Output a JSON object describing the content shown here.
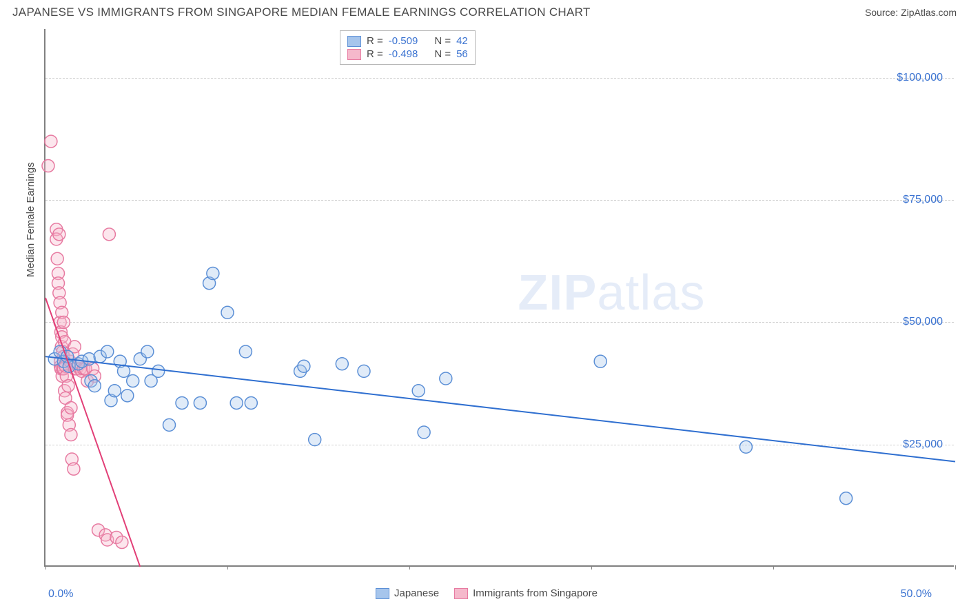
{
  "header": {
    "title": "JAPANESE VS IMMIGRANTS FROM SINGAPORE MEDIAN FEMALE EARNINGS CORRELATION CHART",
    "source_prefix": "Source: ",
    "source": "ZipAtlas.com"
  },
  "chart": {
    "type": "scatter",
    "y_axis_label": "Median Female Earnings",
    "x_axis": {
      "min": 0,
      "max": 50,
      "label_min": "0.0%",
      "label_max": "50.0%",
      "tick_positions_pct": [
        0,
        10,
        20,
        30,
        40,
        50
      ]
    },
    "y_axis": {
      "min": 0,
      "max": 110000,
      "gridlines": [
        25000,
        50000,
        75000,
        100000
      ],
      "labels": [
        "$25,000",
        "$50,000",
        "$75,000",
        "$100,000"
      ]
    },
    "background_color": "#ffffff",
    "grid_color": "#d0d0d0",
    "axis_color": "#808080",
    "label_color": "#3b73d1",
    "title_color": "#4a4a4a",
    "marker_radius": 9,
    "marker_stroke_width": 1.5,
    "marker_fill_opacity": 0.35,
    "regression_line_width": 2,
    "watermark_text_bold": "ZIP",
    "watermark_text_light": "atlas",
    "watermark_color": "#e5ecf8",
    "series": [
      {
        "name": "Japanese",
        "legend_label": "Japanese",
        "color_fill": "#a6c5ec",
        "color_stroke": "#5b8fd6",
        "line_color": "#2f6fd0",
        "r_value": "-0.509",
        "n_value": "42",
        "regression": {
          "x1": 0,
          "y1": 43000,
          "x2": 50,
          "y2": 21500
        },
        "points": [
          [
            0.5,
            42500
          ],
          [
            0.8,
            44000
          ],
          [
            1.0,
            42000
          ],
          [
            1.2,
            43000
          ],
          [
            1.3,
            41000
          ],
          [
            1.8,
            41500
          ],
          [
            2.0,
            42000
          ],
          [
            2.4,
            42500
          ],
          [
            2.5,
            38000
          ],
          [
            2.7,
            37000
          ],
          [
            3.0,
            43000
          ],
          [
            3.4,
            44000
          ],
          [
            3.6,
            34000
          ],
          [
            3.8,
            36000
          ],
          [
            4.1,
            42000
          ],
          [
            4.3,
            40000
          ],
          [
            4.5,
            35000
          ],
          [
            4.8,
            38000
          ],
          [
            5.2,
            42500
          ],
          [
            5.6,
            44000
          ],
          [
            5.8,
            38000
          ],
          [
            6.2,
            40000
          ],
          [
            6.8,
            29000
          ],
          [
            7.5,
            33500
          ],
          [
            8.5,
            33500
          ],
          [
            9.0,
            58000
          ],
          [
            9.2,
            60000
          ],
          [
            10.0,
            52000
          ],
          [
            10.5,
            33500
          ],
          [
            11.0,
            44000
          ],
          [
            11.3,
            33500
          ],
          [
            14.0,
            40000
          ],
          [
            14.2,
            41000
          ],
          [
            14.8,
            26000
          ],
          [
            16.3,
            41500
          ],
          [
            17.5,
            40000
          ],
          [
            20.5,
            36000
          ],
          [
            20.8,
            27500
          ],
          [
            22.0,
            38500
          ],
          [
            30.5,
            42000
          ],
          [
            38.5,
            24500
          ],
          [
            44.0,
            14000
          ]
        ]
      },
      {
        "name": "Immigrants from Singapore",
        "legend_label": "Immigrants from Singapore",
        "color_fill": "#f5b8cb",
        "color_stroke": "#e77aa1",
        "line_color": "#e23f77",
        "r_value": "-0.498",
        "n_value": "56",
        "regression": {
          "x1": 0,
          "y1": 55000,
          "x2": 5.2,
          "y2": 0
        },
        "points": [
          [
            0.15,
            82000
          ],
          [
            0.3,
            87000
          ],
          [
            0.6,
            69000
          ],
          [
            0.6,
            67000
          ],
          [
            0.65,
            63000
          ],
          [
            0.7,
            60000
          ],
          [
            0.7,
            58000
          ],
          [
            0.75,
            56000
          ],
          [
            0.75,
            68000
          ],
          [
            0.8,
            54000
          ],
          [
            0.8,
            50000
          ],
          [
            0.82,
            42000
          ],
          [
            0.82,
            41000
          ],
          [
            0.85,
            48000
          ],
          [
            0.85,
            40500
          ],
          [
            0.88,
            45000
          ],
          [
            0.9,
            52000
          ],
          [
            0.9,
            47000
          ],
          [
            0.92,
            39000
          ],
          [
            0.95,
            44000
          ],
          [
            0.95,
            40500
          ],
          [
            1.0,
            50000
          ],
          [
            1.0,
            43000
          ],
          [
            1.0,
            40500
          ],
          [
            1.05,
            46000
          ],
          [
            1.05,
            36000
          ],
          [
            1.1,
            41000
          ],
          [
            1.1,
            34500
          ],
          [
            1.15,
            39000
          ],
          [
            1.2,
            31500
          ],
          [
            1.2,
            31000
          ],
          [
            1.25,
            37000
          ],
          [
            1.3,
            29000
          ],
          [
            1.35,
            42000
          ],
          [
            1.4,
            32500
          ],
          [
            1.4,
            27000
          ],
          [
            1.45,
            22000
          ],
          [
            1.5,
            43500
          ],
          [
            1.55,
            20000
          ],
          [
            1.6,
            45000
          ],
          [
            1.6,
            40500
          ],
          [
            1.7,
            40500
          ],
          [
            1.8,
            41000
          ],
          [
            1.9,
            40500
          ],
          [
            2.0,
            40000
          ],
          [
            2.1,
            40500
          ],
          [
            2.2,
            40500
          ],
          [
            2.3,
            38000
          ],
          [
            2.6,
            40500
          ],
          [
            2.7,
            39000
          ],
          [
            2.9,
            7500
          ],
          [
            3.3,
            6500
          ],
          [
            3.4,
            5500
          ],
          [
            3.5,
            68000
          ],
          [
            3.9,
            6000
          ],
          [
            4.2,
            5000
          ]
        ]
      }
    ],
    "legend_top": {
      "r_prefix": "R = ",
      "n_prefix": "N = "
    }
  }
}
